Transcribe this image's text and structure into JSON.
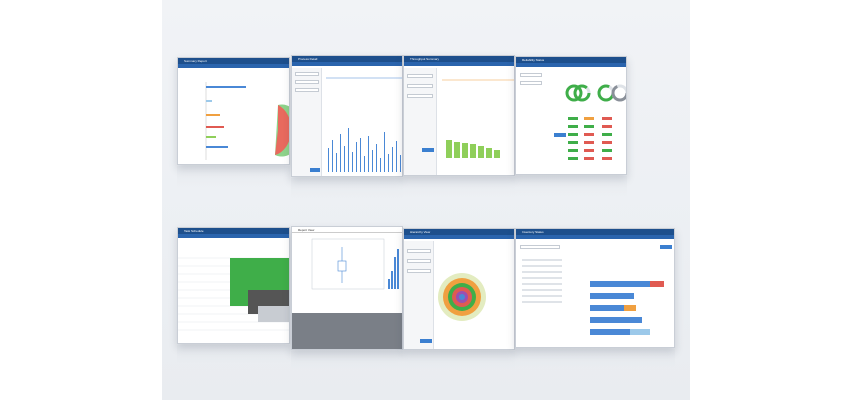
{
  "screens": [
    {
      "id": "s1",
      "title": "Summary Report",
      "kind": "bar-hbars-pie"
    },
    {
      "id": "s2",
      "title": "Process Detail",
      "kind": "columns"
    },
    {
      "id": "s3",
      "title": "Throughput Summary",
      "kind": "green-bars"
    },
    {
      "id": "s4",
      "title": "Reliability Status",
      "kind": "donuts-table"
    },
    {
      "id": "s5",
      "title": "Task Schedule",
      "kind": "gantt-table"
    },
    {
      "id": "s6",
      "title": "Report View",
      "kind": "boxplot-histogram"
    },
    {
      "id": "s7",
      "title": "Hierarchy View",
      "kind": "sunburst"
    },
    {
      "id": "s8",
      "title": "Inventory Status",
      "kind": "stacked-hbars"
    }
  ],
  "colors": {
    "header": "#1d4f8c",
    "nav": "#2a64ad",
    "green": "#8fcf5a",
    "dark_green": "#3fae49",
    "red": "#e05a52",
    "orange": "#f0a040",
    "blue": "#4a88d6",
    "pie_green": "#8ed38a"
  }
}
